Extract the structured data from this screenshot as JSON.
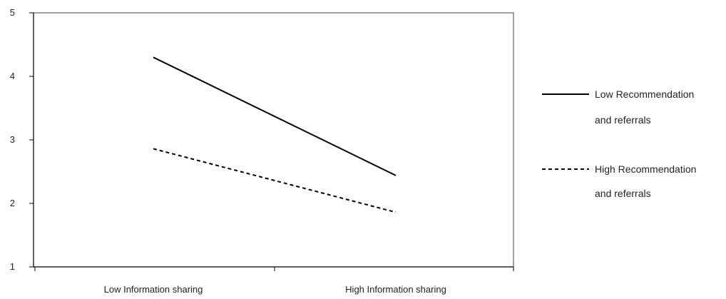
{
  "chart_data": {
    "type": "line",
    "title": "",
    "xlabel": "",
    "ylabel": "",
    "categories": [
      "Low Information sharing",
      "High Information sharing"
    ],
    "ylim": [
      1,
      5
    ],
    "y_ticks": [
      "1",
      "2",
      "3",
      "4",
      "5"
    ],
    "grid": false,
    "legend_position": "right",
    "series": [
      {
        "name_lines": [
          "Low Recommendation",
          "and referrals"
        ],
        "values": [
          4.3,
          2.44
        ],
        "line_style": "solid",
        "color": "#000000"
      },
      {
        "name_lines": [
          "High Recommendation",
          "and referrals"
        ],
        "values": [
          2.86,
          1.86
        ],
        "line_style": "dashed",
        "color": "#000000"
      }
    ]
  },
  "colors": {
    "axis": "#000000",
    "plot_border": "#808080",
    "text": "#222222"
  }
}
